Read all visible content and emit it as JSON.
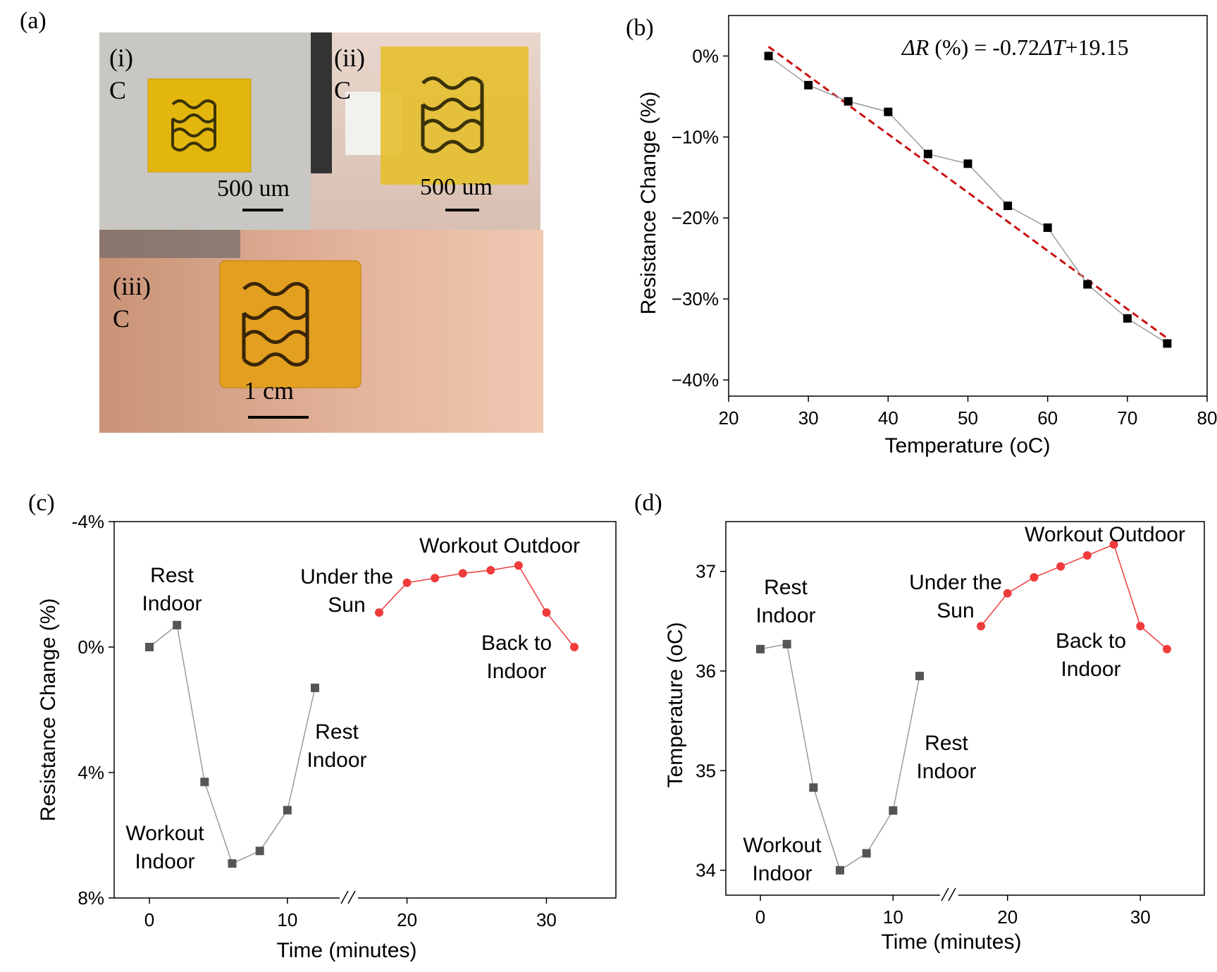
{
  "panels": {
    "a": {
      "label": "(a)",
      "photos": [
        {
          "tag": "(i)",
          "sub": "C",
          "scale": "500 um"
        },
        {
          "tag": "(ii)",
          "sub": "C",
          "scale": "500 um"
        },
        {
          "tag": "(iii)",
          "sub": "C",
          "scale": "1 cm"
        }
      ]
    },
    "b": {
      "label": "(b)",
      "equation_prefix": "ΔR",
      "equation_mid": " (%) = -0.72",
      "equation_delta": "ΔT",
      "equation_suffix": "+19.15"
    },
    "c": {
      "label": "(c)"
    },
    "d": {
      "label": "(d)"
    }
  },
  "colors": {
    "gray_series": "#555555",
    "red_series": "#ef3b3b",
    "fit_line": "#cc1111",
    "photo_tape": "#e8b400"
  },
  "chart_data": [
    {
      "id": "b",
      "type": "scatter",
      "xlabel": "Temperature (oC)",
      "ylabel": "Resistance Change (%)",
      "xlim": [
        20,
        80
      ],
      "ylim": [
        -42,
        5
      ],
      "xticks": [
        "20",
        "30",
        "40",
        "50",
        "60",
        "70",
        "80"
      ],
      "yticks": [
        {
          "v": 0,
          "t": "0%"
        },
        {
          "v": -10,
          "t": "−10%"
        },
        {
          "v": -20,
          "t": "−20%"
        },
        {
          "v": -30,
          "t": "−30%"
        },
        {
          "v": -40,
          "t": "−40%"
        }
      ],
      "x": [
        25,
        30,
        35,
        40,
        45,
        50,
        55,
        60,
        65,
        70,
        75
      ],
      "y": [
        0,
        -3.6,
        -5.6,
        -6.9,
        -12.1,
        -13.3,
        -18.5,
        -21.2,
        -28.2,
        -32.4,
        -35.5
      ],
      "fit": {
        "slope": -0.72,
        "intercept": 19.15,
        "x_range": [
          25,
          75
        ],
        "style": "dashed"
      },
      "grid": false
    },
    {
      "id": "c",
      "type": "line",
      "xlabel": "Time (minutes)",
      "ylabel": "Resistance Change (%)",
      "axis_break": true,
      "y_inverted": true,
      "ylim": [
        -4,
        8
      ],
      "xticks": [
        "0",
        "10",
        "20",
        "30"
      ],
      "yticks": [
        {
          "v": -4,
          "t": "-4%"
        },
        {
          "v": 0,
          "t": "0%"
        },
        {
          "v": 4,
          "t": "4%"
        },
        {
          "v": 8,
          "t": "8%"
        }
      ],
      "series": [
        {
          "color": "gray",
          "x": [
            0,
            2,
            4,
            6,
            8,
            10,
            12
          ],
          "y": [
            0,
            -0.7,
            4.3,
            6.9,
            6.5,
            5.2,
            1.3
          ]
        },
        {
          "color": "red",
          "x": [
            18,
            20,
            22,
            24,
            26,
            28,
            30,
            32
          ],
          "y": [
            -1.1,
            -2.05,
            -2.2,
            -2.35,
            -2.45,
            -2.6,
            -1.1,
            0
          ]
        }
      ],
      "annotations": [
        {
          "lines": [
            "Rest",
            "Indoor"
          ]
        },
        {
          "lines": [
            "Workout",
            "Indoor"
          ]
        },
        {
          "lines": [
            "Rest",
            "Indoor"
          ]
        },
        {
          "lines": [
            "Under the",
            "Sun"
          ]
        },
        {
          "lines": [
            "Workout Outdoor"
          ]
        },
        {
          "lines": [
            "Back to",
            "Indoor"
          ]
        }
      ]
    },
    {
      "id": "d",
      "type": "line",
      "xlabel": "Time (minutes)",
      "ylabel": "Temperature (oC)",
      "axis_break": true,
      "ylim": [
        33.75,
        37.5
      ],
      "xticks": [
        "0",
        "10",
        "20",
        "30"
      ],
      "yticks": [
        {
          "v": 34,
          "t": "34"
        },
        {
          "v": 35,
          "t": "35"
        },
        {
          "v": 36,
          "t": "36"
        },
        {
          "v": 37,
          "t": "37"
        }
      ],
      "series": [
        {
          "color": "gray",
          "x": [
            0,
            2,
            4,
            6,
            8,
            10,
            12
          ],
          "y": [
            36.22,
            36.27,
            34.83,
            34.0,
            34.17,
            34.6,
            35.95
          ]
        },
        {
          "color": "red",
          "x": [
            18,
            20,
            22,
            24,
            26,
            28,
            30,
            32
          ],
          "y": [
            36.45,
            36.78,
            36.94,
            37.05,
            37.16,
            37.27,
            36.45,
            36.22
          ]
        }
      ],
      "annotations": [
        {
          "lines": [
            "Rest",
            "Indoor"
          ]
        },
        {
          "lines": [
            "Workout",
            "Indoor"
          ]
        },
        {
          "lines": [
            "Rest",
            "Indoor"
          ]
        },
        {
          "lines": [
            "Under the",
            "Sun"
          ]
        },
        {
          "lines": [
            "Workout Outdoor"
          ]
        },
        {
          "lines": [
            "Back to",
            "Indoor"
          ]
        }
      ]
    }
  ]
}
